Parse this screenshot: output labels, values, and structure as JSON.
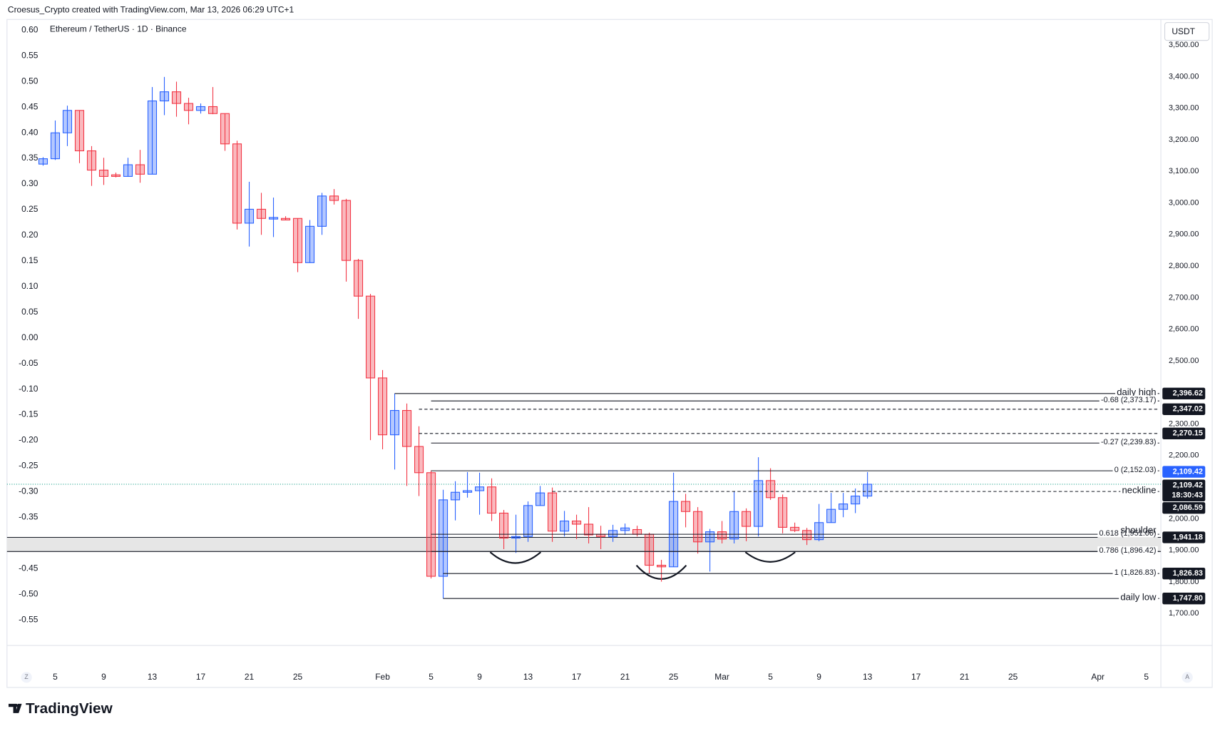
{
  "header": {
    "attribution": "Croesus_Crypto created with TradingView.com, Mar 13, 2026 06:29 UTC+1",
    "brand": "TradingView"
  },
  "chart_data": {
    "type": "candlestick",
    "title": "Ethereum / TetherUS · 1D · Binance",
    "currency": "USDT",
    "x": [
      4,
      5,
      6,
      7,
      8,
      9,
      10,
      11,
      12,
      13,
      14,
      15,
      16,
      17,
      18,
      19,
      20,
      21,
      22,
      23,
      24,
      25,
      26,
      27,
      28,
      29,
      30,
      31,
      32,
      33,
      34,
      35,
      36,
      37,
      38,
      39,
      40,
      41,
      42,
      43,
      44,
      45,
      46,
      47,
      48,
      49,
      50,
      51,
      52,
      53,
      54,
      55,
      56,
      57,
      58,
      59,
      60,
      61,
      62,
      63,
      64,
      65,
      66,
      67,
      68,
      69,
      70,
      71,
      72
    ],
    "open": [
      3123,
      3140,
      3222,
      3293,
      3165,
      3104,
      3089,
      3084,
      3121,
      3091,
      3323,
      3352,
      3315,
      3293,
      3305,
      3283,
      3187,
      2936,
      2980,
      2949,
      2951,
      2951,
      2811,
      2926,
      3022,
      3008,
      2818,
      2705,
      2446,
      2266,
      2343,
      2229,
      2146,
      1818,
      2060,
      2084,
      2089,
      2101,
      2018,
      1939,
      1944,
      2042,
      2082,
      1961,
      1993,
      1983,
      1951,
      1944,
      1963,
      1966,
      1951,
      1853,
      1848,
      2055,
      2023,
      1927,
      1959,
      1936,
      2023,
      1976,
      2121,
      2067,
      1973,
      1963,
      1934,
      1988,
      2030,
      2047,
      2072
    ],
    "high": [
      3145,
      3261,
      3308,
      3293,
      3180,
      3143,
      3096,
      3143,
      3168,
      3367,
      3399,
      3384,
      3333,
      3315,
      3367,
      3283,
      3197,
      3067,
      3032,
      3017,
      2958,
      2951,
      2946,
      3032,
      3044,
      3013,
      2823,
      2712,
      2471,
      2396.62,
      2365,
      2293,
      2153,
      2092,
      2119,
      2148,
      2146,
      2128,
      2028,
      2013,
      2055,
      2104,
      2099,
      2025,
      2013,
      2037,
      1978,
      1981,
      1985,
      1978,
      1956,
      1870,
      2146,
      2079,
      2037,
      1968,
      1993,
      2087,
      2033,
      2195,
      2160,
      2077,
      1988,
      1971,
      2047,
      2082,
      2082,
      2096,
      2148
    ],
    "low": [
      3118,
      3136,
      3180,
      3126,
      3054,
      3057,
      3081,
      3084,
      3064,
      3091,
      3278,
      3273,
      3249,
      3283,
      3281,
      3165,
      2916,
      2862,
      2899,
      2892,
      2946,
      2781,
      2811,
      2899,
      2995,
      2751,
      2633,
      2249,
      2220,
      2156,
      2104,
      2072,
      1811,
      1747.8,
      1995,
      2067,
      2013,
      1993,
      1904,
      1892,
      1927,
      2042,
      1927,
      1944,
      1936,
      1922,
      1904,
      1927,
      1949,
      1944,
      1826,
      1801,
      1848,
      1973,
      1890,
      1833,
      1922,
      1922,
      1929,
      1944,
      2060,
      1954,
      1958,
      1917,
      1929,
      1988,
      2005,
      2018,
      2064
    ],
    "close": [
      3140,
      3222,
      3293,
      3165,
      3104,
      3084,
      3084,
      3121,
      3091,
      3323,
      3352,
      3315,
      3293,
      3305,
      3283,
      3187,
      2936,
      2980,
      2951,
      2954,
      2946,
      2811,
      2926,
      3022,
      3008,
      2818,
      2705,
      2446,
      2266,
      2343,
      2229,
      2146,
      1818,
      2060,
      2084,
      2089,
      2101,
      2018,
      1939,
      1944,
      2042,
      2082,
      1961,
      1993,
      1983,
      1949,
      1944,
      1963,
      1971,
      1951,
      1853,
      1848,
      2055,
      2023,
      1927,
      1959,
      1936,
      2023,
      1976,
      2121,
      2067,
      1973,
      1963,
      1934,
      1988,
      2030,
      2047,
      2072,
      2109.42
    ],
    "up_color": "#2962ff",
    "down_color": "#f23645",
    "xlim": [
      1.02,
      96.2
    ],
    "xticks": [
      5,
      9,
      13,
      17,
      21,
      25,
      {
        "value": 32,
        "label": "Feb"
      },
      {
        "value": 36,
        "label": "5"
      },
      {
        "value": 40,
        "label": "9"
      },
      {
        "value": 44,
        "label": "13"
      },
      {
        "value": 48,
        "label": "17"
      },
      {
        "value": 52,
        "label": "21"
      },
      {
        "value": 56,
        "label": "25"
      },
      {
        "value": 60,
        "label": "Mar"
      },
      {
        "value": 64,
        "label": "5"
      },
      {
        "value": 68,
        "label": "9"
      },
      {
        "value": 72,
        "label": "13"
      },
      {
        "value": 76,
        "label": "17"
      },
      {
        "value": 80,
        "label": "21"
      },
      {
        "value": 84,
        "label": "25"
      },
      {
        "value": 91,
        "label": "Apr"
      },
      {
        "value": 95,
        "label": "5"
      }
    ],
    "ylim": [
      1599,
      3581
    ],
    "yticks": [
      {
        "value": 1700,
        "label": "1,700.00"
      },
      {
        "value": 1800,
        "label": "1,800.00"
      },
      {
        "value": 1900,
        "label": "1,900.00"
      },
      {
        "value": 2000,
        "label": "2,000.00"
      },
      {
        "value": 2100,
        "label": "2,100.00"
      },
      {
        "value": 2200,
        "label": "2,200.00"
      },
      {
        "value": 2300,
        "label": "2,300.00"
      },
      {
        "value": 2400,
        "label": "2,400.00"
      },
      {
        "value": 2500,
        "label": "2,500.00"
      },
      {
        "value": 2600,
        "label": "2,600.00"
      },
      {
        "value": 2700,
        "label": "2,700.00"
      },
      {
        "value": 2800,
        "label": "2,800.00"
      },
      {
        "value": 2900,
        "label": "2,900.00"
      },
      {
        "value": 3000,
        "label": "3,000.00"
      },
      {
        "value": 3100,
        "label": "3,100.00"
      },
      {
        "value": 3200,
        "label": "3,200.00"
      },
      {
        "value": 3300,
        "label": "3,300.00"
      },
      {
        "value": 3400,
        "label": "3,400.00"
      },
      {
        "value": 3500,
        "label": "3,500.00"
      }
    ],
    "y2lim": [
      -0.6,
      0.621
    ],
    "y2ticks": [
      {
        "value": 0.6,
        "label": "0.60"
      },
      {
        "value": 0.55,
        "label": "0.55"
      },
      {
        "value": 0.5,
        "label": "0.50"
      },
      {
        "value": 0.45,
        "label": "0.45"
      },
      {
        "value": 0.4,
        "label": "0.40"
      },
      {
        "value": 0.35,
        "label": "0.35"
      },
      {
        "value": 0.3,
        "label": "0.30"
      },
      {
        "value": 0.25,
        "label": "0.25"
      },
      {
        "value": 0.2,
        "label": "0.20"
      },
      {
        "value": 0.15,
        "label": "0.15"
      },
      {
        "value": 0.1,
        "label": "0.10"
      },
      {
        "value": 0.05,
        "label": "0.05"
      },
      {
        "value": 0,
        "label": "0.00"
      },
      {
        "value": -0.05,
        "label": "-0.05"
      },
      {
        "value": -0.1,
        "label": "-0.10"
      },
      {
        "value": -0.15,
        "label": "-0.15"
      },
      {
        "value": -0.2,
        "label": "-0.20"
      },
      {
        "value": -0.25,
        "label": "-0.25"
      },
      {
        "value": -0.3,
        "label": "-0.30"
      },
      {
        "value": -0.35,
        "label": "-0.35"
      },
      {
        "value": -0.4,
        "label": "-0.40"
      },
      {
        "value": -0.45,
        "label": "-0.45"
      },
      {
        "value": -0.5,
        "label": "-0.50"
      },
      {
        "value": -0.55,
        "label": "-0.55"
      }
    ],
    "levels": [
      {
        "value": 2396.62,
        "text": "daily high",
        "from": 33,
        "dashed": false,
        "badge": "2,396.62"
      },
      {
        "value": 2373.17,
        "text": "-0.68 (2,373.17)",
        "from": 36,
        "dashed": false
      },
      {
        "value": 2347.02,
        "from": 35,
        "dashed": true,
        "badge": "2,347.02"
      },
      {
        "value": 2270.15,
        "from": 35,
        "dashed": true,
        "badge": "2,270.15"
      },
      {
        "value": 2239.83,
        "text": "-0.27 (2,239.83)",
        "from": 36,
        "dashed": false
      },
      {
        "value": 2152.03,
        "text": "0 (2,152.03)",
        "from": 36,
        "dashed": false
      },
      {
        "value": 2086.59,
        "text": "neckline",
        "from": 46,
        "dashed": true,
        "badge": "2,086.59"
      },
      {
        "value": 1951.06,
        "text": "0.618 (1,951.06)",
        "from": 36,
        "dashed": false
      },
      {
        "value": 1896.42,
        "text": "0.786 (1,896.42)",
        "from": 36,
        "dashed": false
      },
      {
        "value": 1826.83,
        "text": "1 (1,826.83)",
        "from": 37,
        "dashed": false,
        "badge": "1,826.83"
      },
      {
        "value": 1747.8,
        "text": "daily low",
        "from": 37,
        "dashed": false,
        "badge": "1,747.80"
      }
    ],
    "zone": {
      "from": 1896.42,
      "to": 1941.18,
      "badge": "1,941.18"
    },
    "annotations": [
      {
        "text": "shoulder",
        "value": 1963
      }
    ],
    "last_price": {
      "value": 2109.42,
      "label": "2,109.42",
      "countdown": "18:30:43",
      "color": "#2962ff"
    },
    "axis_buttons": [
      "Z",
      "A"
    ]
  }
}
